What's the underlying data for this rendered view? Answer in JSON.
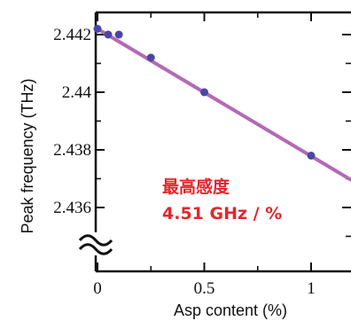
{
  "chart_data": {
    "type": "line",
    "xlabel": "Asp content (%)",
    "ylabel": "Peak frequency (THz)",
    "xlim": [
      0,
      1.2
    ],
    "ylim": [
      2.4348,
      2.4428
    ],
    "x_ticks": [
      {
        "value": 0,
        "label": "0"
      },
      {
        "value": 0.5,
        "label": "0.5"
      },
      {
        "value": 1,
        "label": "1"
      }
    ],
    "y_ticks": [
      {
        "value": 2.442,
        "label": "2.442"
      },
      {
        "value": 2.44,
        "label": "2.44"
      },
      {
        "value": 2.438,
        "label": "2.438"
      },
      {
        "value": 2.436,
        "label": "2.436"
      }
    ],
    "series": [
      {
        "x": [
          0,
          0.05,
          0.1,
          0.25,
          0.5,
          1.0
        ],
        "y": [
          2.4422,
          2.442,
          2.442,
          2.4412,
          2.44,
          2.4378
        ]
      }
    ],
    "fit_line": {
      "x": [
        0,
        1.2
      ],
      "y": [
        2.4422,
        2.4369
      ]
    },
    "axis_break": true,
    "annotation": {
      "line1": "最高感度",
      "line2": "4.51  GHz / %"
    },
    "colors": {
      "line": "#b469b6",
      "marker": "#4a46a6",
      "annotation": "#e3262b",
      "axis": "#111111"
    }
  }
}
